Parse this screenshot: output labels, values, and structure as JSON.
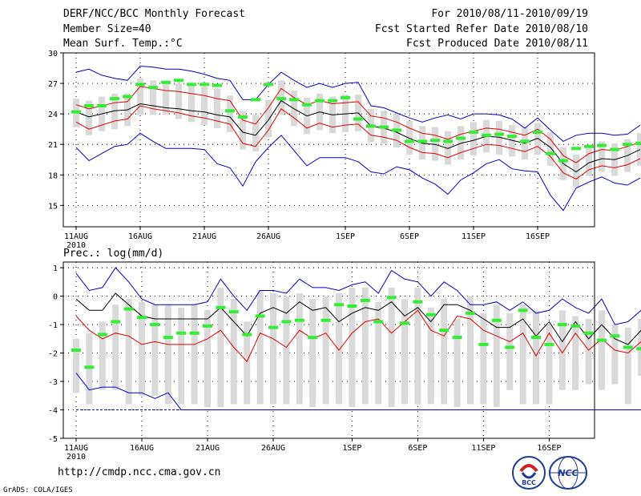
{
  "header": {
    "title": "DERF/NCC/BCC Monthly Forecast",
    "member_size": "Member Size=40",
    "variable": "Mean Surf. Temp.:°C",
    "period": "For 2010/08/11-2010/09/19",
    "start_date": "Fcst Started Refer Date 2010/08/10",
    "produced_date": "Fcst Produced Date 2010/08/11"
  },
  "footer": {
    "url": "http://cmdp.ncc.cma.gov.cn",
    "credit": "GrADS: COLA/IGES",
    "logo_bcc_text": "BCC",
    "logo_ncc_text": "NCC"
  },
  "colors": {
    "box": "#d9d9d9",
    "mean": "#000000",
    "std_band": "#e00000",
    "extreme": "#0000cc",
    "obs": "#33ee33"
  },
  "chart_data": [
    {
      "type": "box",
      "title": "Mean Surf. Temp.:°C",
      "ylabel": "°C",
      "ylim": [
        12.9,
        30
      ],
      "yticks": [
        15,
        18,
        21,
        24,
        27,
        30
      ],
      "yticklabels": [
        "15",
        "18",
        "21",
        "24",
        "27",
        "30"
      ],
      "grid": true,
      "xstart": 11,
      "xticks": [
        11,
        16,
        21,
        26,
        32,
        37,
        42,
        47
      ],
      "xticklabels": [
        "11AUG",
        "16AUG",
        "21AUG",
        "26AUG",
        "1SEP",
        "6SEP",
        "11SEP",
        "16SEP"
      ],
      "year_label": "2010",
      "series": [
        {
          "name": "ensemble mean",
          "values": [
            24.2,
            23.7,
            24.0,
            24.3,
            24.4,
            25.0,
            24.8,
            24.6,
            24.5,
            24.3,
            24.2,
            23.9,
            23.7,
            22.2,
            21.9,
            23.4,
            25.3,
            24.5,
            23.8,
            24.2,
            23.9,
            24.0,
            24.1,
            22.8,
            22.6,
            22.2,
            21.6,
            21.1,
            21.0,
            20.6,
            21.1,
            21.4,
            21.8,
            21.7,
            21.4,
            21.1,
            21.6,
            20.7,
            19.1,
            18.3,
            19.2,
            19.6,
            19.5,
            19.9,
            20.5
          ]
        },
        {
          "name": "mean + std",
          "values": [
            24.9,
            24.5,
            24.8,
            25.1,
            25.2,
            26.7,
            26.5,
            26.3,
            26.2,
            26.0,
            25.8,
            25.5,
            25.3,
            23.4,
            23.0,
            24.6,
            26.5,
            25.6,
            24.9,
            25.3,
            25.0,
            25.1,
            25.2,
            23.8,
            23.6,
            23.2,
            22.6,
            22.1,
            21.9,
            21.5,
            22.0,
            22.3,
            22.6,
            22.5,
            22.2,
            21.9,
            22.5,
            21.5,
            19.9,
            19.2,
            20.1,
            20.5,
            20.4,
            20.8,
            21.2
          ]
        },
        {
          "name": "mean - std",
          "values": [
            23.2,
            22.5,
            22.9,
            23.3,
            23.5,
            24.8,
            24.5,
            24.3,
            24.1,
            23.8,
            23.6,
            23.3,
            23.0,
            21.1,
            20.8,
            22.4,
            24.5,
            23.6,
            22.6,
            23.1,
            22.7,
            22.9,
            23.0,
            21.9,
            21.7,
            21.4,
            20.7,
            20.2,
            20.1,
            19.7,
            20.2,
            20.6,
            21.0,
            20.9,
            20.6,
            20.3,
            20.8,
            19.8,
            18.2,
            17.6,
            18.5,
            18.9,
            18.7,
            19.0,
            19.6
          ]
        },
        {
          "name": "max",
          "values": [
            28.1,
            28.4,
            27.8,
            27.5,
            27.3,
            28.7,
            28.6,
            28.4,
            28.4,
            28.2,
            27.9,
            27.5,
            27.3,
            25.4,
            25.4,
            26.9,
            28.1,
            27.3,
            26.6,
            27.0,
            26.6,
            27.0,
            27.1,
            24.8,
            24.6,
            24.1,
            23.6,
            23.2,
            23.6,
            23.9,
            23.5,
            24.0,
            24.0,
            23.9,
            23.5,
            22.6,
            23.6,
            22.4,
            21.3,
            21.9,
            22.1,
            22.1,
            21.9,
            22.0,
            22.9
          ]
        },
        {
          "name": "min",
          "values": [
            20.7,
            19.4,
            20.1,
            20.8,
            21.0,
            22.1,
            21.3,
            20.6,
            20.6,
            20.6,
            20.5,
            19.1,
            18.7,
            16.9,
            19.3,
            20.7,
            21.9,
            20.4,
            18.9,
            19.7,
            19.7,
            19.7,
            19.3,
            18.3,
            18.1,
            18.8,
            18.5,
            17.7,
            17.1,
            16.1,
            17.5,
            18.2,
            19.1,
            19.5,
            18.6,
            18.4,
            18.3,
            16.0,
            14.5,
            16.7,
            17.3,
            17.8,
            17.2,
            17.0,
            17.7
          ]
        },
        {
          "name": "observed",
          "values": [
            24.2,
            24.8,
            24.8,
            25.5,
            25.7,
            26.9,
            26.6,
            27.1,
            27.3,
            26.9,
            26.9,
            26.8,
            24.3,
            23.7,
            25.4,
            26.9,
            25.5,
            25.4,
            24.9,
            25.3,
            25.3,
            25.6,
            23.5,
            22.8,
            22.7,
            22.4,
            21.3,
            21.3,
            21.4,
            21.3,
            21.6,
            22.2,
            21.9,
            22.0,
            21.8,
            21.3,
            22.2,
            20.1,
            19.4,
            20.6,
            20.8,
            20.9,
            20.5,
            21.0,
            21.1
          ]
        }
      ],
      "box_upper": [
        25.5,
        25.3,
        25.7,
        26.0,
        26.0,
        27.5,
        27.3,
        27.0,
        27.0,
        27.0,
        26.7,
        26.5,
        25.8,
        24.3,
        23.9,
        25.4,
        27.3,
        26.3,
        25.6,
        26.0,
        25.7,
        25.9,
        25.9,
        24.5,
        24.3,
        24.0,
        23.3,
        22.8,
        22.7,
        22.3,
        22.8,
        23.2,
        23.4,
        23.3,
        22.9,
        22.7,
        23.1,
        22.2,
        20.7,
        20.0,
        20.8,
        21.3,
        21.1,
        21.5,
        22.1
      ],
      "box_lower": [
        22.7,
        21.9,
        22.3,
        22.5,
        22.8,
        23.9,
        23.9,
        23.9,
        23.5,
        23.2,
        22.9,
        22.6,
        22.2,
        20.5,
        20.3,
        21.7,
        23.9,
        22.8,
        22.0,
        22.4,
        22.1,
        22.2,
        22.3,
        21.2,
        21.1,
        20.7,
        20.0,
        19.5,
        19.4,
        19.0,
        19.5,
        19.9,
        20.2,
        20.0,
        19.8,
        19.5,
        20.0,
        18.9,
        17.5,
        16.8,
        17.9,
        18.3,
        17.9,
        18.3,
        18.9
      ]
    },
    {
      "type": "box",
      "title": "Prec.: log(mm/d)",
      "ylabel": "log(mm/d)",
      "ylim": [
        -5,
        1.2
      ],
      "yticks": [
        -5,
        -4,
        -3,
        -2,
        -1,
        0,
        1
      ],
      "yticklabels": [
        "-5",
        "-4",
        "-3",
        "-2",
        "-1",
        "0",
        "1"
      ],
      "grid": true,
      "xstart": 11,
      "xticks": [
        11,
        16,
        21,
        26,
        32,
        37,
        42,
        47
      ],
      "xticklabels": [
        "11AUG",
        "16AUG",
        "21AUG",
        "26AUG",
        "1SEP",
        "6SEP",
        "11SEP",
        "16SEP"
      ],
      "year_label": "2010",
      "series": [
        {
          "name": "ensemble mean",
          "values": [
            -0.1,
            -0.5,
            -0.5,
            0.1,
            -0.3,
            -0.7,
            -0.8,
            -0.8,
            -0.8,
            -0.8,
            -0.8,
            -0.4,
            -0.9,
            -1.4,
            -0.6,
            -0.4,
            -0.6,
            -0.2,
            -0.5,
            -0.4,
            -0.9,
            -0.6,
            -0.4,
            -0.5,
            -0.2,
            -0.7,
            -0.4,
            -0.9,
            -0.3,
            -0.3,
            -0.5,
            -0.8,
            -1.1,
            -1.1,
            -0.8,
            -1.4,
            -0.9,
            -1.6,
            -0.9,
            -1.5,
            -1.0,
            -1.5,
            -1.7,
            -1.2,
            -1.5
          ]
        },
        {
          "name": "mean - std",
          "values": [
            -0.7,
            -1.2,
            -1.5,
            -1.3,
            -1.4,
            -1.7,
            -1.6,
            -1.7,
            -1.7,
            -1.7,
            -1.5,
            -1.2,
            -1.8,
            -2.3,
            -1.3,
            -1.5,
            -1.8,
            -1.2,
            -1.5,
            -1.3,
            -1.9,
            -1.3,
            -0.9,
            -0.8,
            -1.3,
            -0.9,
            -0.5,
            -1.2,
            -1.4,
            -0.7,
            -0.8,
            -1.2,
            -1.4,
            -1.6,
            -1.3,
            -2.1,
            -1.3,
            -2.0,
            -1.3,
            -1.9,
            -1.5,
            -1.9,
            -2.0,
            -1.6,
            -1.7
          ]
        },
        {
          "name": "max",
          "values": [
            0.8,
            0.2,
            0.3,
            1.0,
            0.5,
            -0.1,
            -0.3,
            -0.3,
            -0.3,
            -0.3,
            -0.2,
            0.6,
            0.0,
            -0.5,
            0.2,
            0.2,
            0.1,
            0.6,
            0.3,
            0.3,
            0.2,
            0.4,
            0.5,
            0.1,
            0.9,
            0.6,
            0.5,
            0.0,
            0.5,
            0.2,
            -0.3,
            -0.3,
            -0.2,
            -0.5,
            -0.2,
            -0.6,
            -0.5,
            -0.1,
            -0.4,
            -0.6,
            -0.1,
            -1.0,
            -0.9,
            -0.5,
            -0.6
          ]
        },
        {
          "name": "min",
          "values": [
            -2.7,
            -3.3,
            -3.2,
            -3.2,
            -3.4,
            -3.4,
            -3.6,
            -3.4,
            -4.0,
            -4.0,
            -4.0,
            -4.0,
            -4.0,
            -4.0,
            -4.0,
            -4.0,
            -4.0,
            -4.0,
            -4.0,
            -4.0,
            -4.0,
            -4.0,
            -4.0,
            -4.0,
            -4.0,
            -4.0,
            -4.0,
            -4.0,
            -4.0,
            -4.0,
            -4.0,
            -4.0,
            -4.0,
            -4.0,
            -4.0,
            -4.0,
            -4.0,
            -4.0,
            -4.0,
            -4.0,
            -4.0,
            -4.0,
            -4.0,
            -4.0,
            -4.0
          ]
        },
        {
          "name": "observed",
          "values": [
            -1.9,
            -2.5,
            -1.35,
            -0.9,
            -0.45,
            -0.75,
            -1.0,
            -1.45,
            -1.3,
            -1.3,
            -1.05,
            -0.4,
            -0.55,
            -1.35,
            -0.7,
            -1.1,
            -0.9,
            -0.85,
            -1.45,
            -0.85,
            -0.3,
            -0.35,
            -0.15,
            -0.9,
            -0.05,
            -0.95,
            -0.2,
            -0.65,
            -1.2,
            -1.45,
            -0.6,
            -1.7,
            -0.85,
            -1.8,
            -0.5,
            -1.45,
            -1.7,
            -1.0,
            -1.05,
            -1.3,
            -1.55,
            -1.4,
            -1.8,
            -1.85,
            -1.05
          ]
        }
      ],
      "box_upper": [
        -1.5,
        -1.3,
        -0.9,
        -0.3,
        -0.1,
        -0.2,
        -0.3,
        -0.3,
        -0.4,
        -0.3,
        -0.5,
        0.3,
        -0.1,
        -0.9,
        0.2,
        0.1,
        0.0,
        0.1,
        -0.1,
        0.0,
        0.1,
        0.3,
        0.3,
        -0.2,
        0.3,
        -0.1,
        0.3,
        -0.4,
        -0.1,
        -0.8,
        0.0,
        -0.6,
        -0.3,
        -0.6,
        -0.3,
        -0.5,
        -1.0,
        -0.5,
        -0.7,
        -0.8,
        -0.5,
        -1.0,
        -1.1,
        -0.8,
        -0.9
      ],
      "box_lower": [
        -3.4,
        -3.8,
        -3.3,
        -3.3,
        -3.8,
        -3.5,
        -3.5,
        -3.8,
        -3.8,
        -3.8,
        -3.9,
        -3.9,
        -3.8,
        -3.8,
        -3.8,
        -3.8,
        -3.8,
        -3.8,
        -3.9,
        -3.8,
        -3.8,
        -3.9,
        -3.8,
        -3.8,
        -3.9,
        -3.8,
        -3.8,
        -3.8,
        -3.8,
        -3.9,
        -3.8,
        -3.8,
        -3.9,
        -3.3,
        -3.8,
        -3.8,
        -3.8,
        -3.3,
        -3.3,
        -3.1,
        -3.3,
        -3.1,
        -3.8,
        -2.8,
        -2.8
      ]
    }
  ]
}
